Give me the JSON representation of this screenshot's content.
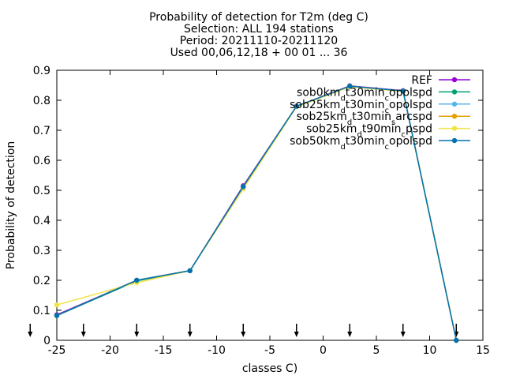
{
  "chart_data": {
    "type": "line",
    "title_lines": [
      "Probability of detection  for T2m (deg C)",
      "Selection: ALL    194 stations",
      "Period: 20211110-20211120",
      "Used 00,06,12,18 + 00 01 ... 36"
    ],
    "xlabel": "classes C)",
    "ylabel": "Probability of detection",
    "xlim": [
      -25,
      15
    ],
    "ylim": [
      0,
      0.9
    ],
    "xticks": [
      "-25",
      "-20",
      "-15",
      "-10",
      "-5",
      "0",
      "5",
      "10",
      "15"
    ],
    "xtick_values": [
      -25,
      -20,
      -15,
      -10,
      -5,
      0,
      5,
      10,
      15
    ],
    "yticks": [
      "0",
      "0.1",
      "0.2",
      "0.3",
      "0.4",
      "0.5",
      "0.6",
      "0.7",
      "0.8",
      "0.9"
    ],
    "ytick_values": [
      0,
      0.1,
      0.2,
      0.3,
      0.4,
      0.5,
      0.6,
      0.7,
      0.8,
      0.9
    ],
    "arrow_x": [
      -27.5,
      -22.5,
      -17.5,
      -12.5,
      -7.5,
      -2.5,
      2.5,
      7.5,
      12.5
    ],
    "grid": false,
    "legend_position": "top-right",
    "series": [
      {
        "name": "REF",
        "color": "#9400d3",
        "x": [
          -25,
          -17.5,
          -12.5,
          -7.5,
          -2.5,
          2.5,
          7.5,
          12.5
        ],
        "y": [
          0.085,
          0.2,
          0.232,
          0.515,
          0.78,
          0.848,
          0.832,
          0.0
        ]
      },
      {
        "name": "sob0km_d t30min_c opolspd",
        "color": "#009e73",
        "x": [
          -25,
          -17.5,
          -12.5,
          -7.5,
          -2.5,
          2.5,
          7.5,
          12.5
        ],
        "y": [
          0.082,
          0.198,
          0.232,
          0.51,
          0.78,
          0.846,
          0.83,
          0.0
        ]
      },
      {
        "name": "sob25km_d t30min_c opolspd",
        "color": "#56b4e9",
        "x": [
          -25,
          -17.5,
          -12.5,
          -7.5,
          -2.5,
          2.5,
          7.5,
          12.5
        ],
        "y": [
          0.083,
          0.2,
          0.232,
          0.512,
          0.78,
          0.847,
          0.831,
          0.0
        ]
      },
      {
        "name": "sob25km_d t30min_s arcspd",
        "color": "#e69f00",
        "x": [
          -25,
          -17.5,
          -12.5,
          -7.5,
          -2.5,
          2.5,
          7.5,
          12.5
        ],
        "y": [
          0.083,
          0.2,
          0.232,
          0.512,
          0.78,
          0.847,
          0.831,
          0.0
        ]
      },
      {
        "name": "sob25km_d t90min_c pspd",
        "color": "#f0e442",
        "x": [
          -25,
          -17.5,
          -12.5,
          -7.5,
          -2.5,
          2.5,
          7.5,
          12.5
        ],
        "y": [
          0.118,
          0.192,
          0.232,
          0.505,
          0.778,
          0.845,
          0.83,
          0.0
        ]
      },
      {
        "name": "sob50km_d t30min_c opolspd",
        "color": "#0072b2",
        "x": [
          -25,
          -17.5,
          -12.5,
          -7.5,
          -2.5,
          2.5,
          7.5,
          12.5
        ],
        "y": [
          0.083,
          0.2,
          0.232,
          0.512,
          0.78,
          0.847,
          0.831,
          0.0
        ]
      }
    ]
  }
}
